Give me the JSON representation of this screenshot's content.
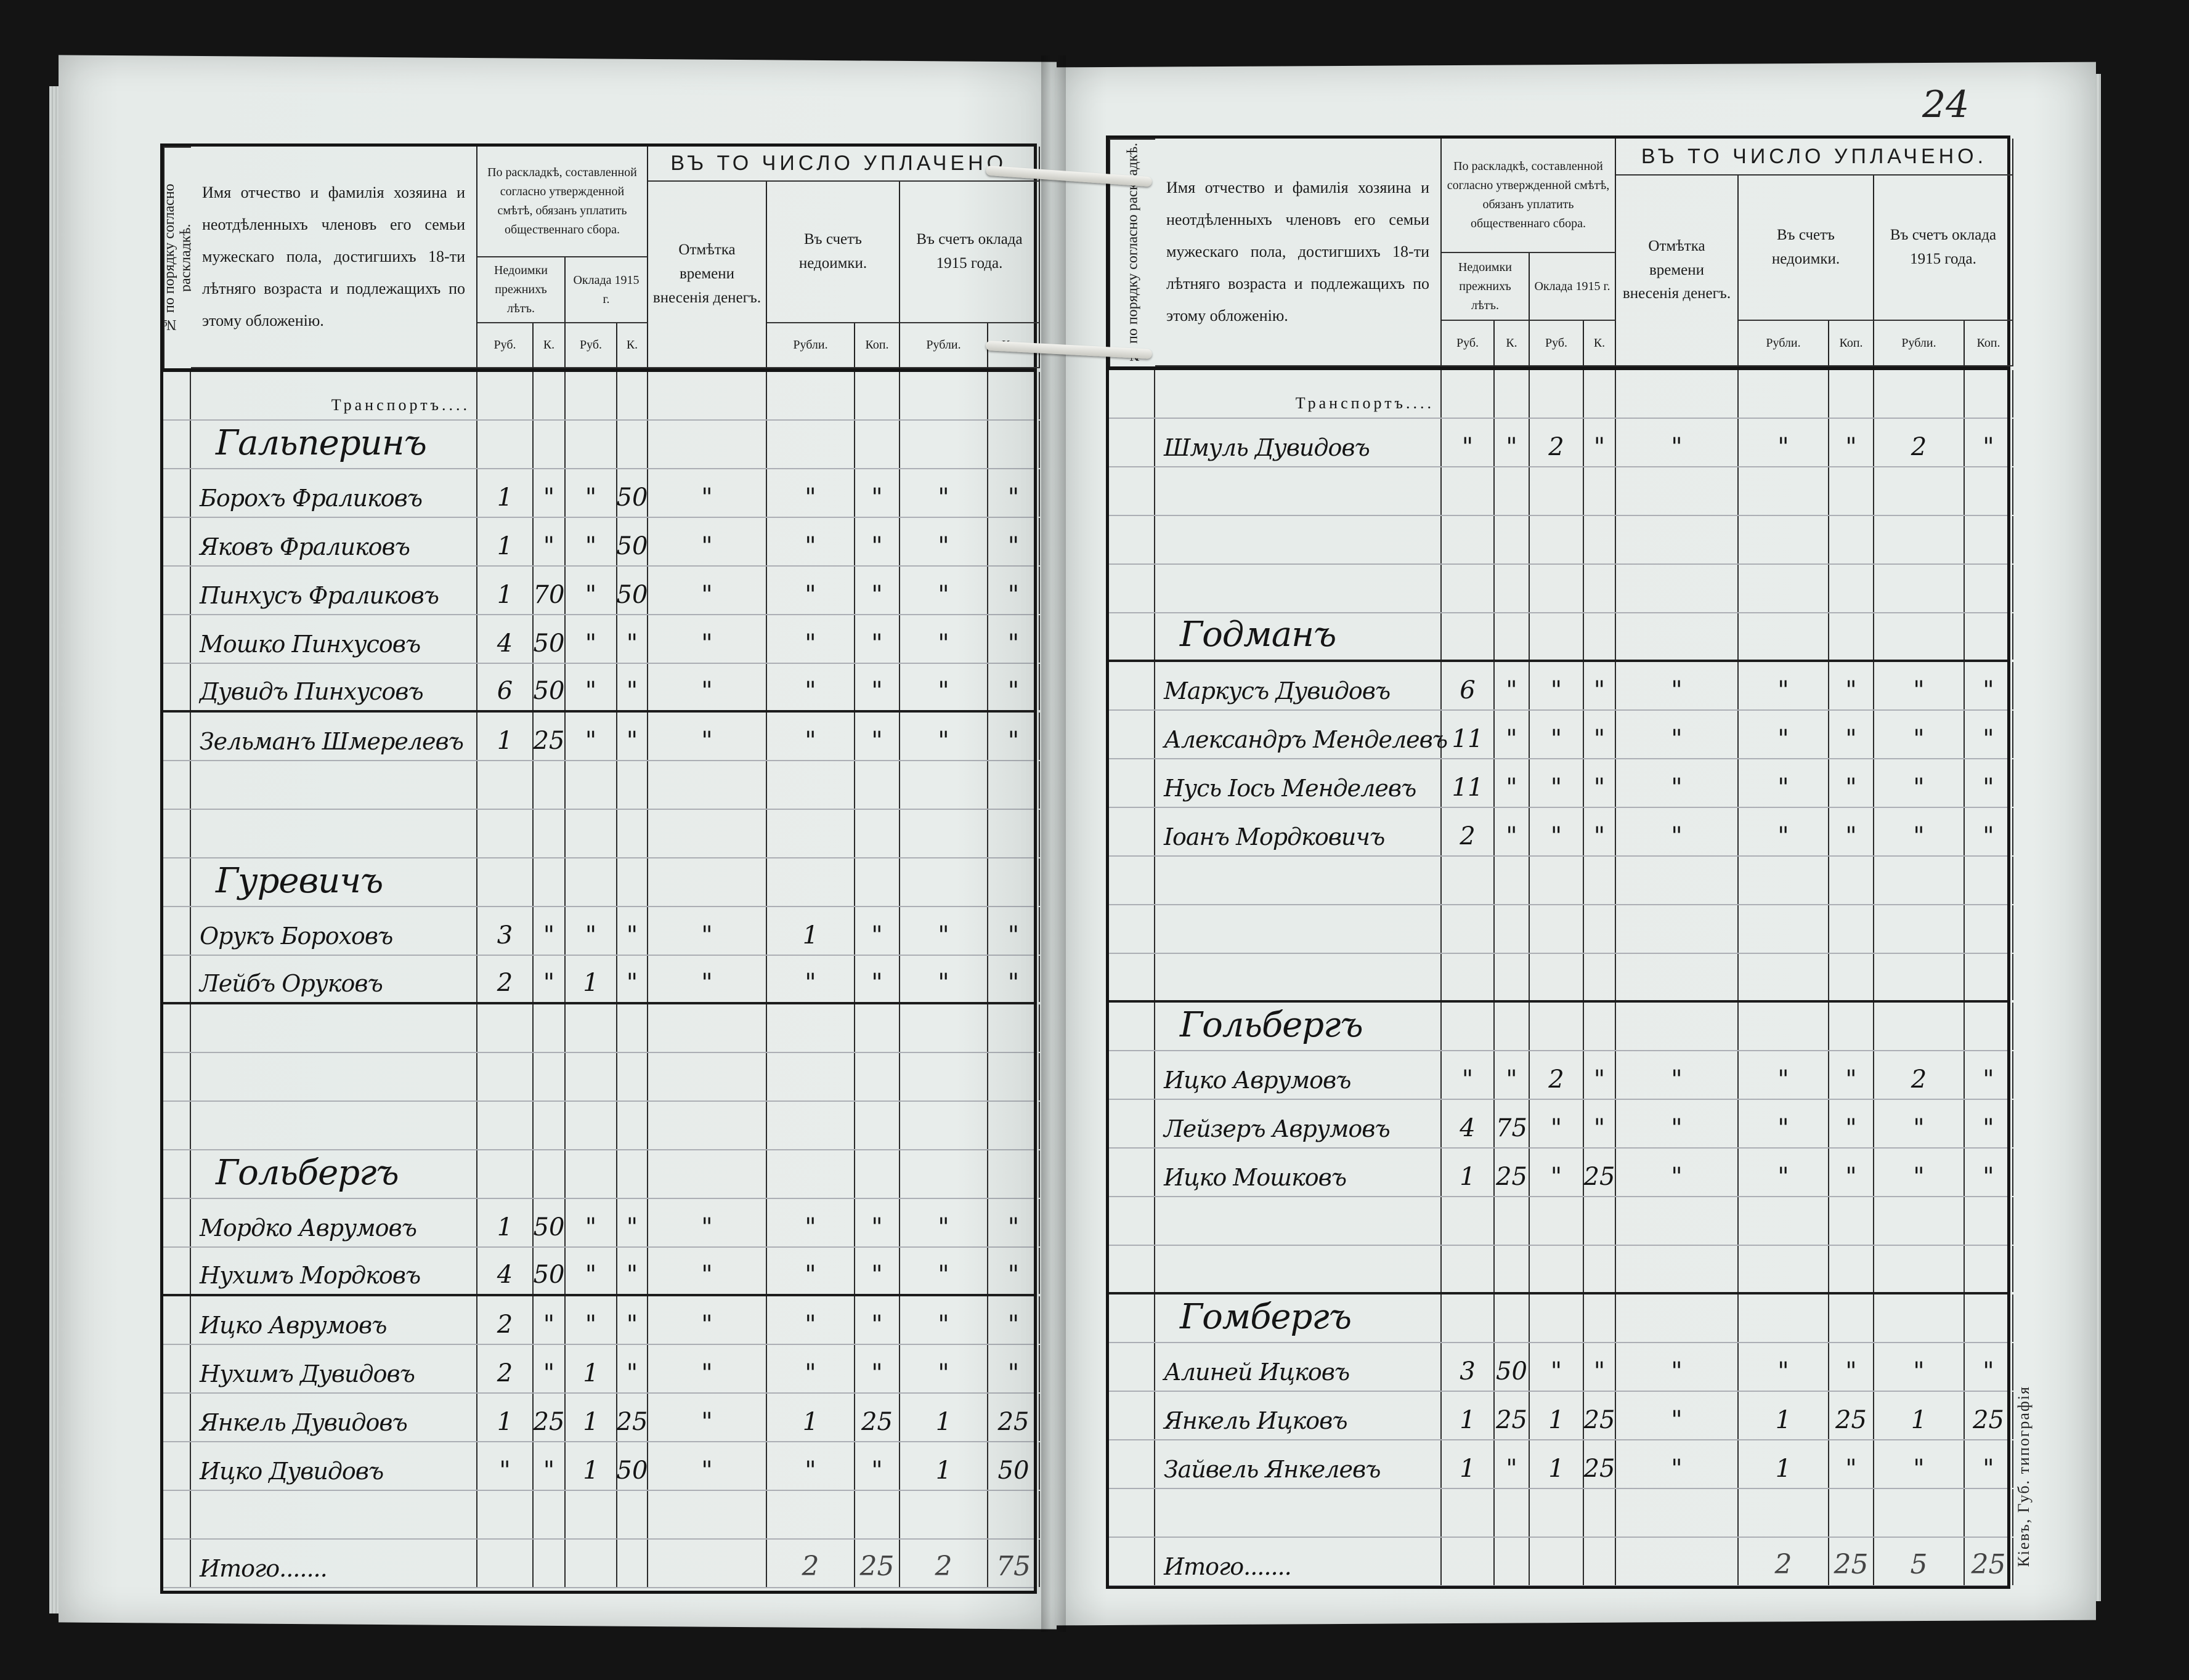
{
  "page_number": "24",
  "imprint": "Кіевъ, Губ. типографія",
  "table_header": {
    "number_col": "№ по порядку согласно раскладкѣ.",
    "name_col": "Имя отчество и фамилія хозяина и неотдѣленныхъ членовъ его семьи мужескаго пола, достигшихъ 18-ти лѣтняго возраста и подлежащихъ по этому обложенію.",
    "assessment": "По раскладкѣ, составленной согласно утвержденной смѣтѣ, обязанъ уплатить общественнаго сбора.",
    "arrears": "Недоимки прежнихъ лѣтъ.",
    "levy": "Оклада 1915 г.",
    "rub": "Руб.",
    "k": "К.",
    "paid_title": "ВЪ ТО ЧИСЛО УПЛАЧЕНО.",
    "payment_mark": "Отмѣтка времени внесенія денегъ.",
    "toward_arrears": "Въ счетъ недоимки.",
    "toward_levy": "Въ счетъ оклада 1915 года.",
    "rubli": "Рубли.",
    "kop": "Коп."
  },
  "left_page": {
    "rows": [
      {
        "type": "printed",
        "name": "Транспортъ....",
        "cells": [
          "",
          "",
          "",
          "",
          "",
          "",
          "",
          "",
          ""
        ]
      },
      {
        "type": "family",
        "name": "Гальперинъ",
        "cells": [
          "",
          "",
          "",
          "",
          "",
          "",
          "",
          "",
          ""
        ]
      },
      {
        "type": "person",
        "name": "Борохъ Фраликовъ",
        "cells": [
          "1",
          "\"",
          "\"",
          "50",
          "\"",
          "\"",
          "\"",
          "\"",
          "\""
        ]
      },
      {
        "type": "person",
        "name": "Яковъ Фраликовъ",
        "cells": [
          "1",
          "\"",
          "\"",
          "50",
          "\"",
          "\"",
          "\"",
          "\"",
          "\""
        ]
      },
      {
        "type": "person",
        "name": "Пинхусъ Фраликовъ",
        "cells": [
          "1",
          "70",
          "\"",
          "50",
          "\"",
          "\"",
          "\"",
          "\"",
          "\""
        ]
      },
      {
        "type": "person",
        "name": "Мошко Пинхусовъ",
        "cells": [
          "4",
          "50",
          "\"",
          "\"",
          "\"",
          "\"",
          "\"",
          "\"",
          "\""
        ]
      },
      {
        "type": "person",
        "name": "Дувидъ Пинхусовъ",
        "cells": [
          "6",
          "50",
          "\"",
          "\"",
          "\"",
          "\"",
          "\"",
          "\"",
          "\""
        ]
      },
      {
        "type": "person",
        "name": "Зельманъ Шмерелевъ",
        "cells": [
          "1",
          "25",
          "\"",
          "\"",
          "\"",
          "\"",
          "\"",
          "\"",
          "\""
        ]
      },
      {
        "type": "blank",
        "name": "",
        "cells": [
          "",
          "",
          "",
          "",
          "",
          "",
          "",
          "",
          ""
        ]
      },
      {
        "type": "blank",
        "name": "",
        "cells": [
          "",
          "",
          "",
          "",
          "",
          "",
          "",
          "",
          ""
        ]
      },
      {
        "type": "family",
        "name": "Гуревичъ",
        "cells": [
          "",
          "",
          "",
          "",
          "",
          "",
          "",
          "",
          ""
        ]
      },
      {
        "type": "person",
        "name": "Орукъ Бороховъ",
        "cells": [
          "3",
          "\"",
          "\"",
          "\"",
          "\"",
          "1",
          "\"",
          "\"",
          "\""
        ]
      },
      {
        "type": "person",
        "name": "Лейбъ Оруковъ",
        "cells": [
          "2",
          "\"",
          "1",
          "\"",
          "\"",
          "\"",
          "\"",
          "\"",
          "\""
        ]
      },
      {
        "type": "blank",
        "name": "",
        "cells": [
          "",
          "",
          "",
          "",
          "",
          "",
          "",
          "",
          ""
        ]
      },
      {
        "type": "blank",
        "name": "",
        "cells": [
          "",
          "",
          "",
          "",
          "",
          "",
          "",
          "",
          ""
        ]
      },
      {
        "type": "blank",
        "name": "",
        "cells": [
          "",
          "",
          "",
          "",
          "",
          "",
          "",
          "",
          ""
        ]
      },
      {
        "type": "family",
        "name": "Гольбергъ",
        "cells": [
          "",
          "",
          "",
          "",
          "",
          "",
          "",
          "",
          ""
        ]
      },
      {
        "type": "person",
        "name": "Мордко Аврумовъ",
        "cells": [
          "1",
          "50",
          "\"",
          "\"",
          "\"",
          "\"",
          "\"",
          "\"",
          "\""
        ]
      },
      {
        "type": "person",
        "name": "Нухимъ Мордковъ",
        "cells": [
          "4",
          "50",
          "\"",
          "\"",
          "\"",
          "\"",
          "\"",
          "\"",
          "\""
        ]
      },
      {
        "type": "person",
        "name": "Ицко Аврумовъ",
        "cells": [
          "2",
          "\"",
          "\"",
          "\"",
          "\"",
          "\"",
          "\"",
          "\"",
          "\""
        ]
      },
      {
        "type": "person",
        "name": "Нухимъ Дувидовъ",
        "cells": [
          "2",
          "\"",
          "1",
          "\"",
          "\"",
          "\"",
          "\"",
          "\"",
          "\""
        ]
      },
      {
        "type": "person",
        "name": "Янкель Дувидовъ",
        "cells": [
          "1",
          "25",
          "1",
          "25",
          "\"",
          "1",
          "25",
          "1",
          "25"
        ]
      },
      {
        "type": "person",
        "name": "Ицко Дувидовъ",
        "cells": [
          "\"",
          "\"",
          "1",
          "50",
          "\"",
          "\"",
          "\"",
          "1",
          "50"
        ]
      },
      {
        "type": "blank",
        "name": "",
        "cells": [
          "",
          "",
          "",
          "",
          "",
          "",
          "",
          "",
          ""
        ]
      },
      {
        "type": "total",
        "name": "Итого.......",
        "cells": [
          "",
          "",
          "",
          "",
          "",
          "2",
          "25",
          "2",
          "75"
        ]
      }
    ]
  },
  "right_page": {
    "rows": [
      {
        "type": "printed",
        "name": "Транспортъ....",
        "cells": [
          "",
          "",
          "",
          "",
          "",
          "",
          "",
          "",
          ""
        ]
      },
      {
        "type": "person",
        "name": "Шмуль Дувидовъ",
        "cells": [
          "\"",
          "\"",
          "2",
          "\"",
          "\"",
          "\"",
          "\"",
          "2",
          "\""
        ]
      },
      {
        "type": "blank",
        "name": "",
        "cells": [
          "",
          "",
          "",
          "",
          "",
          "",
          "",
          "",
          ""
        ]
      },
      {
        "type": "blank",
        "name": "",
        "cells": [
          "",
          "",
          "",
          "",
          "",
          "",
          "",
          "",
          ""
        ]
      },
      {
        "type": "blank",
        "name": "",
        "cells": [
          "",
          "",
          "",
          "",
          "",
          "",
          "",
          "",
          ""
        ]
      },
      {
        "type": "family",
        "name": "Годманъ",
        "cells": [
          "",
          "",
          "",
          "",
          "",
          "",
          "",
          "",
          ""
        ]
      },
      {
        "type": "person",
        "name": "Маркусъ Дувидовъ",
        "cells": [
          "6",
          "\"",
          "\"",
          "\"",
          "\"",
          "\"",
          "\"",
          "\"",
          "\""
        ]
      },
      {
        "type": "person",
        "name": "Александръ Менделевъ",
        "cells": [
          "11",
          "\"",
          "\"",
          "\"",
          "\"",
          "\"",
          "\"",
          "\"",
          "\""
        ]
      },
      {
        "type": "person",
        "name": "Нусь Іось Менделевъ",
        "cells": [
          "11",
          "\"",
          "\"",
          "\"",
          "\"",
          "\"",
          "\"",
          "\"",
          "\""
        ]
      },
      {
        "type": "person",
        "name": "Іоанъ Мордковичъ",
        "cells": [
          "2",
          "\"",
          "\"",
          "\"",
          "\"",
          "\"",
          "\"",
          "\"",
          "\""
        ]
      },
      {
        "type": "blank",
        "name": "",
        "cells": [
          "",
          "",
          "",
          "",
          "",
          "",
          "",
          "",
          ""
        ]
      },
      {
        "type": "blank",
        "name": "",
        "cells": [
          "",
          "",
          "",
          "",
          "",
          "",
          "",
          "",
          ""
        ]
      },
      {
        "type": "blank",
        "name": "",
        "cells": [
          "",
          "",
          "",
          "",
          "",
          "",
          "",
          "",
          ""
        ]
      },
      {
        "type": "family",
        "name": "Гольбергъ",
        "cells": [
          "",
          "",
          "",
          "",
          "",
          "",
          "",
          "",
          ""
        ]
      },
      {
        "type": "person",
        "name": "Ицко Аврумовъ",
        "cells": [
          "\"",
          "\"",
          "2",
          "\"",
          "\"",
          "\"",
          "\"",
          "2",
          "\""
        ]
      },
      {
        "type": "person",
        "name": "Лейзеръ Аврумовъ",
        "cells": [
          "4",
          "75",
          "\"",
          "\"",
          "\"",
          "\"",
          "\"",
          "\"",
          "\""
        ]
      },
      {
        "type": "person",
        "name": "Ицко Мошковъ",
        "cells": [
          "1",
          "25",
          "\"",
          "25",
          "\"",
          "\"",
          "\"",
          "\"",
          "\""
        ]
      },
      {
        "type": "blank",
        "name": "",
        "cells": [
          "",
          "",
          "",
          "",
          "",
          "",
          "",
          "",
          ""
        ]
      },
      {
        "type": "blank",
        "name": "",
        "cells": [
          "",
          "",
          "",
          "",
          "",
          "",
          "",
          "",
          ""
        ]
      },
      {
        "type": "family",
        "name": "Гомбергъ",
        "cells": [
          "",
          "",
          "",
          "",
          "",
          "",
          "",
          "",
          ""
        ]
      },
      {
        "type": "person",
        "name": "Алиней Ицковъ",
        "cells": [
          "3",
          "50",
          "\"",
          "\"",
          "\"",
          "\"",
          "\"",
          "\"",
          "\""
        ]
      },
      {
        "type": "person",
        "name": "Янкель Ицковъ",
        "cells": [
          "1",
          "25",
          "1",
          "25",
          "\"",
          "1",
          "25",
          "1",
          "25"
        ]
      },
      {
        "type": "person",
        "name": "Зайвель Янкелевъ",
        "cells": [
          "1",
          "\"",
          "1",
          "25",
          "\"",
          "1",
          "\"",
          "\"",
          "\""
        ]
      },
      {
        "type": "blank",
        "name": "",
        "cells": [
          "",
          "",
          "",
          "",
          "",
          "",
          "",
          "",
          ""
        ]
      },
      {
        "type": "total",
        "name": "Итого.......",
        "cells": [
          "",
          "",
          "",
          "",
          "",
          "2",
          "25",
          "5",
          "25"
        ]
      }
    ]
  }
}
